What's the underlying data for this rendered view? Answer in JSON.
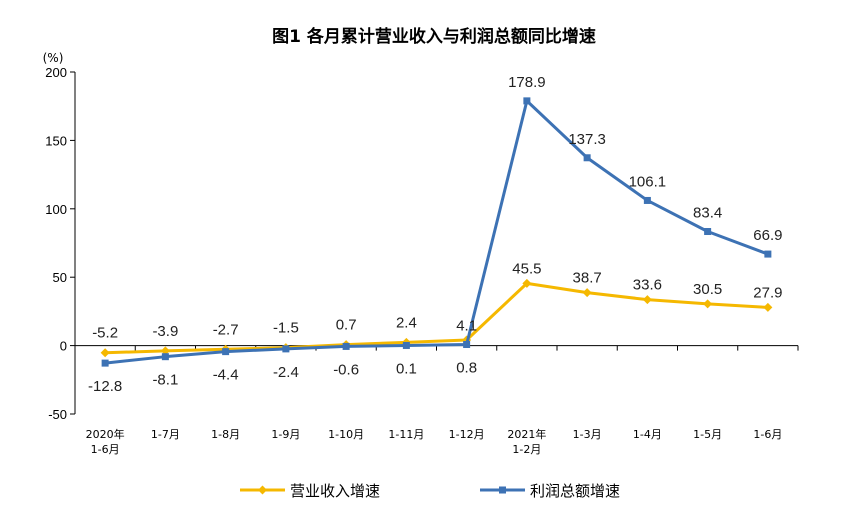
{
  "chart_data": {
    "type": "line",
    "title": "图1  各月累计营业收入与利润总额同比增速",
    "ylabel": "(%)",
    "ylim": [
      -50,
      200
    ],
    "yticks": [
      200,
      150,
      100,
      50,
      0,
      -50
    ],
    "categories": [
      [
        "2020年",
        "1-6月"
      ],
      [
        "1-7月"
      ],
      [
        "1-8月"
      ],
      [
        "1-9月"
      ],
      [
        "1-10月"
      ],
      [
        "1-11月"
      ],
      [
        "1-12月"
      ],
      [
        "2021年",
        "1-2月"
      ],
      [
        "1-3月"
      ],
      [
        "1-4月"
      ],
      [
        "1-5月"
      ],
      [
        "1-6月"
      ]
    ],
    "series": [
      {
        "name": "营业收入增速",
        "color": "#f5b800",
        "marker": "diamond",
        "values": [
          -5.2,
          -3.9,
          -2.7,
          -1.5,
          0.7,
          2.4,
          4.1,
          45.5,
          38.7,
          33.6,
          30.5,
          27.9
        ],
        "labels": [
          "-5.2",
          "-3.9",
          "-2.7",
          "-1.5",
          "0.7",
          "2.4",
          "4.1",
          "45.5",
          "38.7",
          "33.6",
          "30.5",
          "27.9"
        ]
      },
      {
        "name": "利润总额增速",
        "color": "#3d72b4",
        "marker": "square",
        "values": [
          -12.8,
          -8.1,
          -4.4,
          -2.4,
          -0.6,
          0.1,
          0.8,
          178.9,
          137.3,
          106.1,
          83.4,
          66.9
        ],
        "labels": [
          "-12.8",
          "-8.1",
          "-4.4",
          "-2.4",
          "-0.6",
          "0.1",
          "0.8",
          "178.9",
          "137.3",
          "106.1",
          "83.4",
          "66.9"
        ]
      }
    ],
    "grid": false,
    "legend": "bottom"
  }
}
